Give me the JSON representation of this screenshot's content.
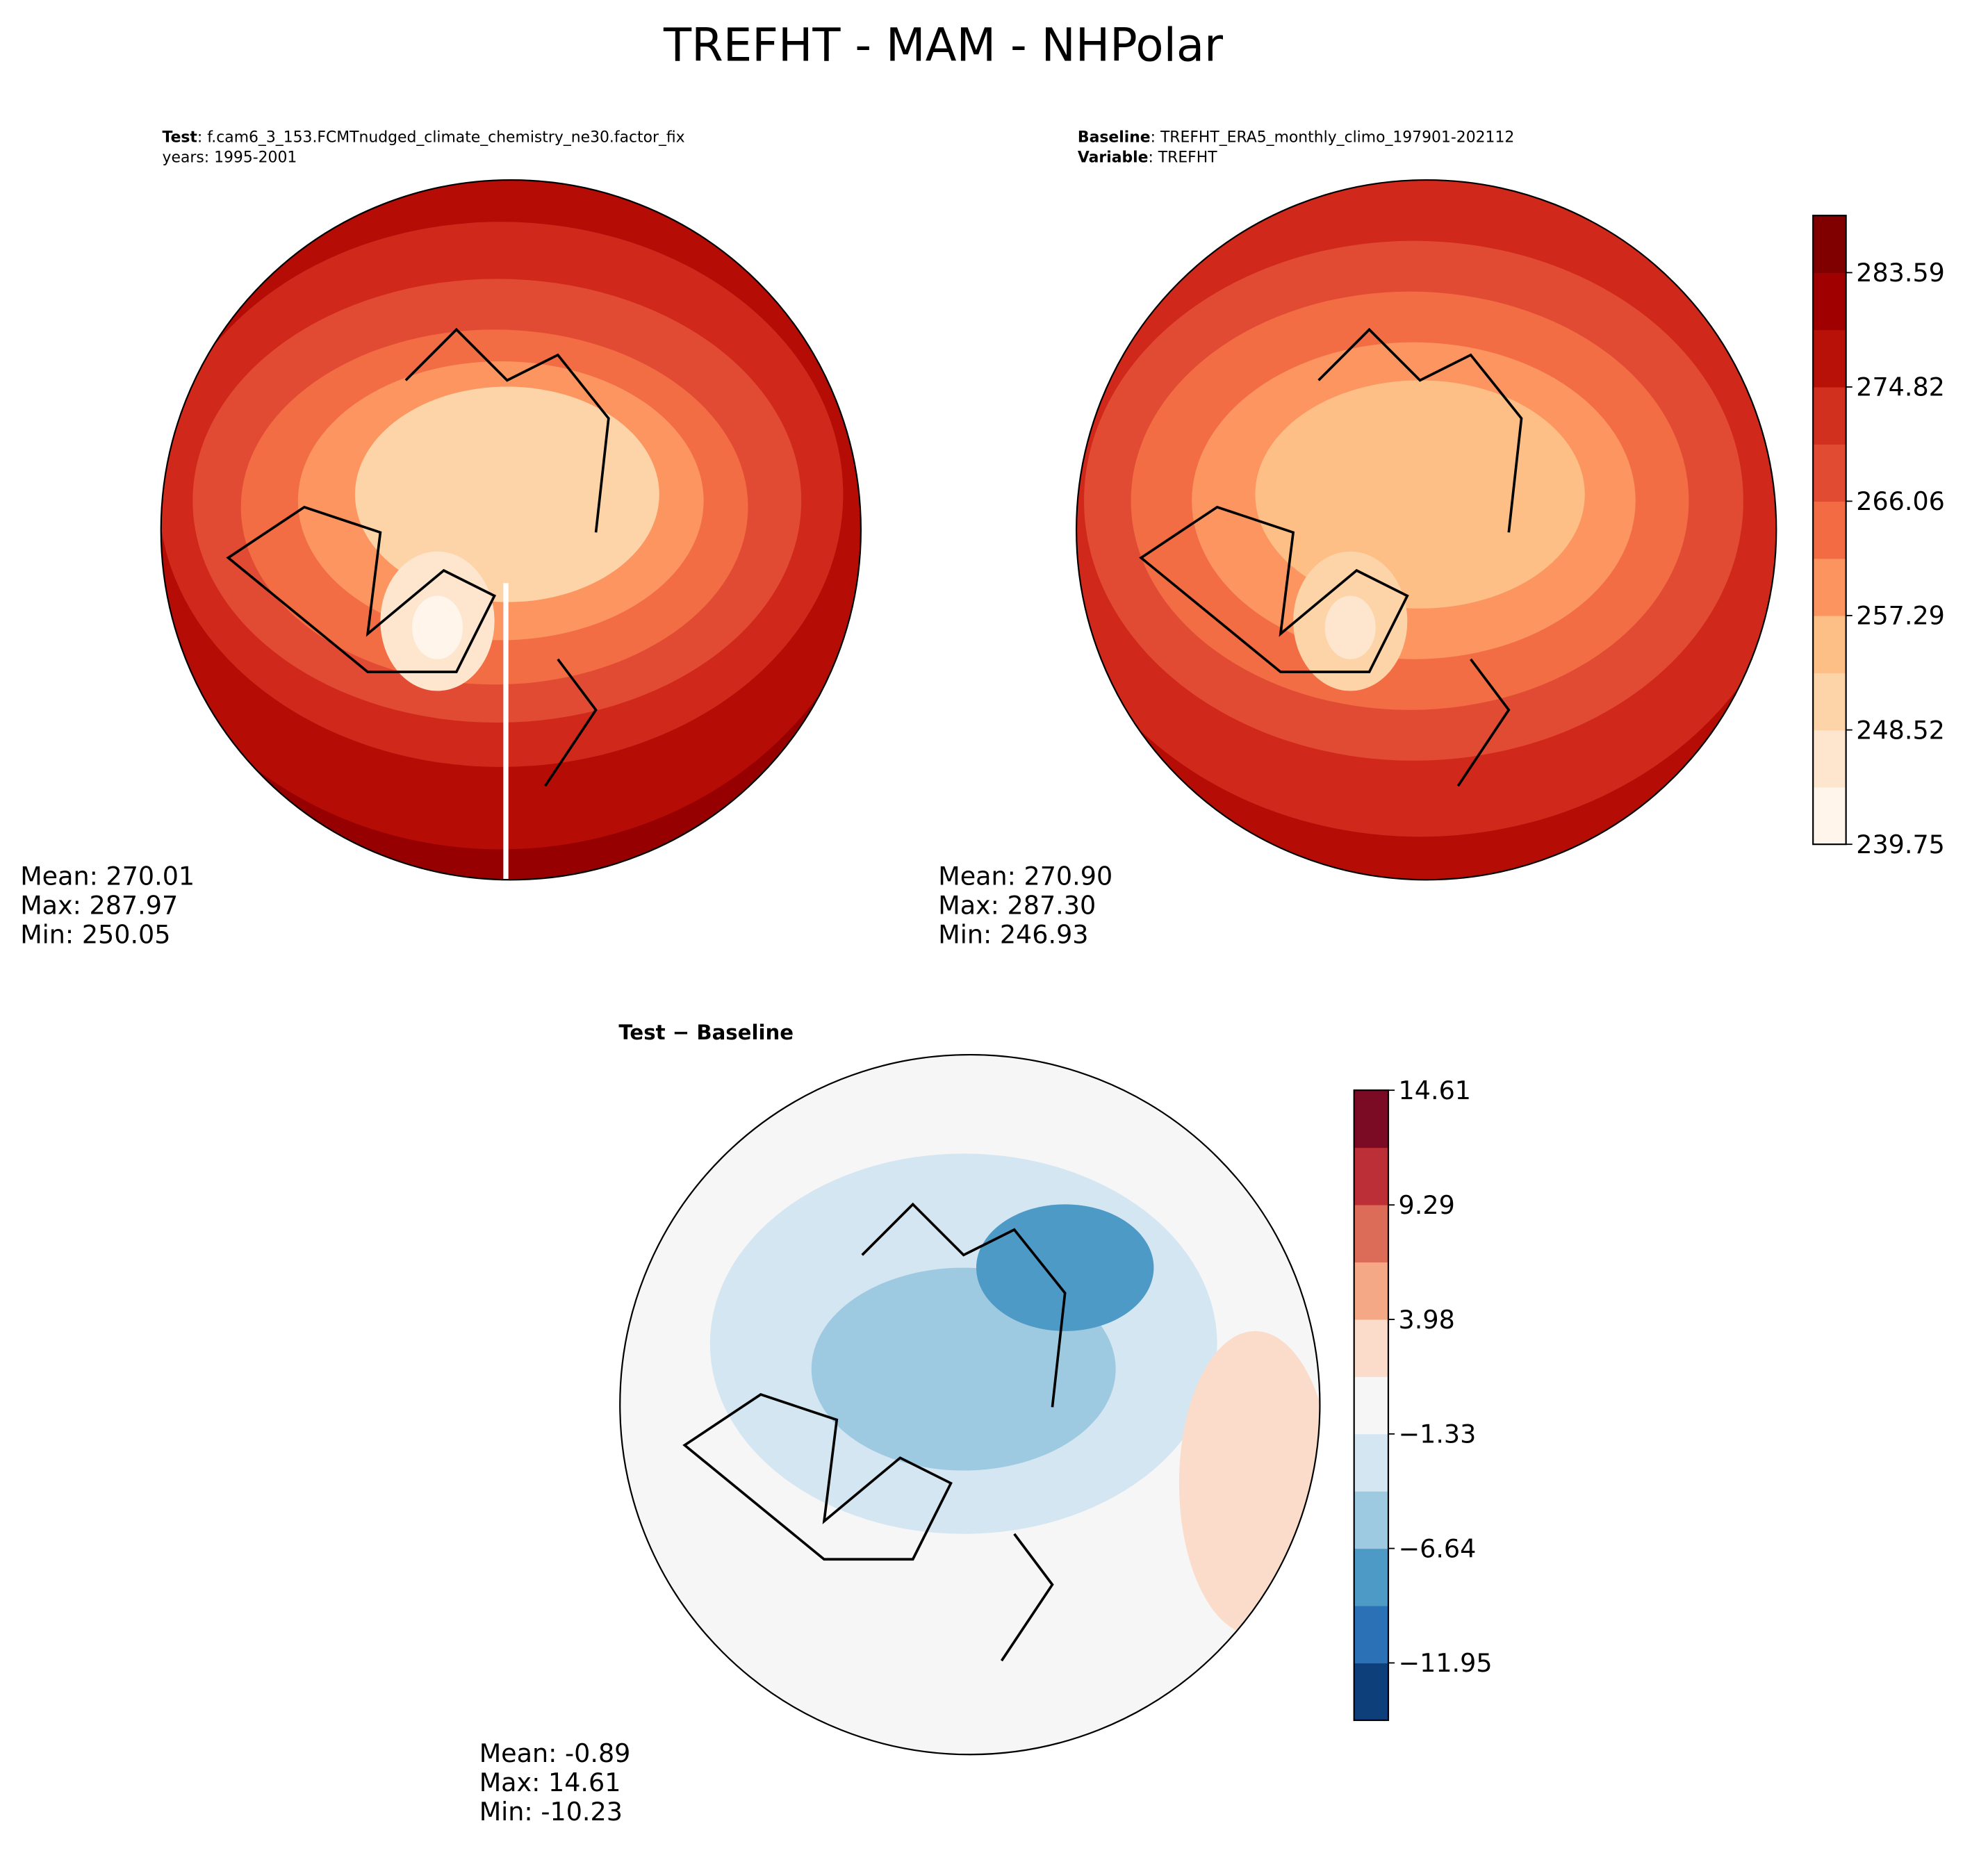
{
  "title": "TREFHT - MAM - NHPolar",
  "panels": [
    {
      "header": [
        {
          "label": "Test",
          "text": ": f.cam6_3_153.FCMTnudged_climate_chemistry_ne30.factor_fix"
        },
        {
          "label": "",
          "text": "years: 1995-2001"
        }
      ],
      "stats": [
        "Mean: 270.01",
        "Max: 287.97",
        "Min: 250.05"
      ]
    },
    {
      "header": [
        {
          "label": "Baseline",
          "text": ": TREFHT_ERA5_monthly_climo_197901-202112"
        },
        {
          "label": "Variable",
          "text": ": TREFHT"
        }
      ],
      "stats": [
        "Mean: 270.90",
        "Max: 287.30",
        "Min: 246.93"
      ]
    },
    {
      "header": [
        {
          "label": "Test − Baseline",
          "text": ""
        }
      ],
      "stats": [
        "Mean: -0.89",
        "Max: 14.61",
        "Min: -10.23"
      ]
    }
  ],
  "colorbars": [
    {
      "ylim": [
        239.75,
        287.97
      ],
      "yticks": [
        239.75,
        248.52,
        257.29,
        266.06,
        274.82,
        283.59
      ],
      "colors": [
        "#fff5eb",
        "#fee6ce",
        "#fdd3a8",
        "#fdbf86",
        "#fc9460",
        "#f26b43",
        "#e04b32",
        "#d2301f",
        "#b81208",
        "#a00000",
        "#800000"
      ]
    },
    {
      "ylim": [
        -14.61,
        14.61
      ],
      "yticks": [
        {
          "value": -11.95,
          "label": "−11.95"
        },
        {
          "value": -6.64,
          "label": "−6.64"
        },
        {
          "value": -1.33,
          "label": "−1.33"
        },
        3.98,
        9.29,
        14.61
      ],
      "colors": [
        "#0d3f7a",
        "#2a72b5",
        "#4d9ac7",
        "#9ecae1",
        "#d4e6f2",
        "#f6f6f6",
        "#fbdcca",
        "#f4a886",
        "#dc6b57",
        "#bd2f36",
        "#7b0a24"
      ]
    }
  ]
}
